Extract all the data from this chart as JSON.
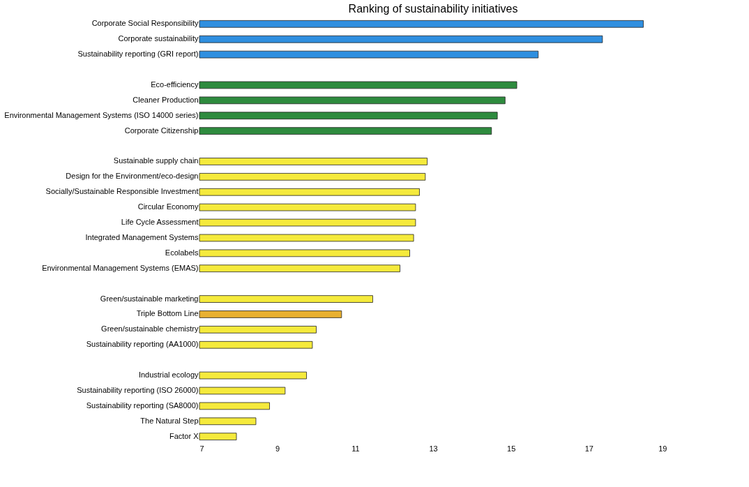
{
  "chart_data": {
    "type": "bar",
    "orientation": "horizontal",
    "title": "Ranking of sustainability initiatives",
    "categories": [
      "Corporate Social Responsibility",
      "Corporate sustainability",
      "Sustainability reporting (GRI report)",
      null,
      "Eco-efficiency",
      "Cleaner Production",
      "Environmental Management Systems (ISO 14000 series)",
      "Corporate Citizenship",
      null,
      "Sustainable supply chain",
      "Design for the Environment/eco-design",
      "Socially/Sustainable Responsible Investment",
      "Circular Economy",
      "Life Cycle Assessment",
      "Integrated Management Systems",
      "Ecolabels",
      "Environmental Management Systems (EMAS)",
      null,
      "Green/sustainable marketing",
      "Triple Bottom Line",
      "Green/sustainable chemistry",
      "Sustainability reporting (AA1000)",
      null,
      "Industrial ecology",
      "Sustainability reporting (ISO 26000)",
      "Sustainability reporting (SA8000)",
      "The Natural Step",
      "Factor X"
    ],
    "values": [
      18.4,
      17.35,
      15.7,
      null,
      15.15,
      14.85,
      14.65,
      14.5,
      null,
      12.85,
      12.8,
      12.65,
      12.55,
      12.55,
      12.5,
      12.4,
      12.15,
      null,
      11.45,
      10.65,
      10.0,
      9.9,
      null,
      9.75,
      9.2,
      8.8,
      8.45,
      7.95
    ],
    "colors": [
      "#2f8fe0",
      "#2f8fe0",
      "#2f8fe0",
      null,
      "#2e8b3e",
      "#2e8b3e",
      "#2e8b3e",
      "#2e8b3e",
      null,
      "#f5ea3c",
      "#f5ea3c",
      "#f5ea3c",
      "#f5ea3c",
      "#f5ea3c",
      "#f5ea3c",
      "#f5ea3c",
      "#f5ea3c",
      null,
      "#f5ea3c",
      "#e8b030",
      "#f5ea3c",
      "#f5ea3c",
      null,
      "#f5ea3c",
      "#f5ea3c",
      "#f5ea3c",
      "#f5ea3c",
      "#f5ea3c"
    ],
    "xlim": [
      7,
      19
    ],
    "xticks": [
      7,
      9,
      11,
      13,
      15,
      17,
      19
    ],
    "grid": false
  }
}
